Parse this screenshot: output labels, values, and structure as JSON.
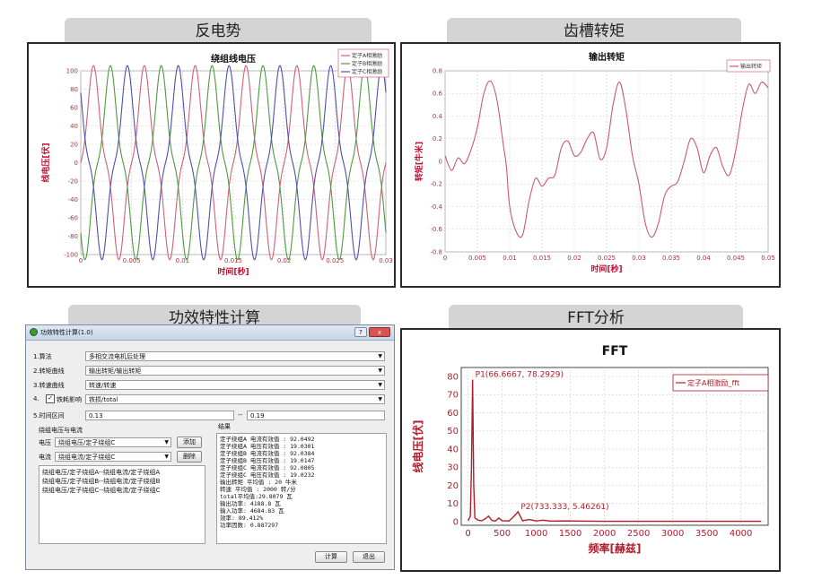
{
  "tabs": {
    "back_emf": "反电势",
    "cogging": "齿槽转矩",
    "efficiency": "功效特性计算",
    "fft": "FFT分析"
  },
  "chart_data": [
    {
      "type": "line",
      "title": "绕组线电压",
      "xlabel": "时间[秒]",
      "ylabel": "线电压[伏]",
      "xlim": [
        0,
        0.03
      ],
      "ylim": [
        -100,
        100
      ],
      "x_ticks": [
        "0",
        "0.005",
        "0.01",
        "0.015",
        "0.02",
        "0.025",
        "0.03"
      ],
      "y_ticks": [
        "100",
        "80",
        "60",
        "40",
        "20",
        "0",
        "-20",
        "-40",
        "-60",
        "-80",
        "-100"
      ],
      "legend_position": "top-right",
      "series": [
        {
          "name": "定子A相激励",
          "color": "#d0607a",
          "phase_deg": 0
        },
        {
          "name": "定子B相激励",
          "color": "#4f9a3f",
          "phase_deg": -120
        },
        {
          "name": "定子C相激励",
          "color": "#4f4fb0",
          "phase_deg": 120
        }
      ],
      "waveform": {
        "frequency_hz": 200,
        "peak": 88,
        "harmonic3_ratio": -0.2
      },
      "grid": true
    },
    {
      "type": "line",
      "title": "输出转矩",
      "xlabel": "时间[秒]",
      "ylabel": "转矩[牛米]",
      "xlim": [
        0,
        0.05
      ],
      "ylim": [
        -0.8,
        0.8
      ],
      "x_ticks": [
        "0",
        "0.005",
        "0.01",
        "0.015",
        "0.02",
        "0.025",
        "0.03",
        "0.035",
        "0.04",
        "0.045",
        "0.05"
      ],
      "y_ticks": [
        "0.8",
        "0.6",
        "0.4",
        "0.2",
        "0",
        "-0.2",
        "-0.4",
        "-0.6",
        "-0.8"
      ],
      "legend_position": "top-right",
      "series": [
        {
          "name": "输出转矩",
          "color": "#cc5a6a",
          "x": [
            0,
            0.001,
            0.002,
            0.003,
            0.004,
            0.005,
            0.006,
            0.007,
            0.008,
            0.009,
            0.0095,
            0.01,
            0.011,
            0.012,
            0.013,
            0.014,
            0.015,
            0.016,
            0.017,
            0.018,
            0.019,
            0.02,
            0.021,
            0.022,
            0.023,
            0.024,
            0.025,
            0.026,
            0.027,
            0.028,
            0.029,
            0.03,
            0.031,
            0.032,
            0.033,
            0.034,
            0.035,
            0.036,
            0.037,
            0.038,
            0.039,
            0.04,
            0.041,
            0.042,
            0.043,
            0.044,
            0.045,
            0.046,
            0.047,
            0.048,
            0.049,
            0.05
          ],
          "y": [
            0.05,
            -0.08,
            0.03,
            -0.02,
            0.1,
            0.3,
            0.6,
            0.71,
            0.55,
            0.15,
            -0.05,
            -0.4,
            -0.62,
            -0.65,
            -0.35,
            -0.15,
            -0.22,
            -0.15,
            -0.12,
            0.12,
            0.18,
            0.05,
            0.08,
            0.2,
            0.25,
            0.02,
            0.12,
            0.5,
            0.7,
            0.45,
            0.05,
            -0.2,
            -0.55,
            -0.67,
            -0.55,
            -0.3,
            -0.22,
            -0.18,
            0.0,
            0.2,
            0.12,
            -0.1,
            0.05,
            0.12,
            -0.05,
            -0.12,
            0.1,
            0.45,
            0.68,
            0.6,
            0.7,
            0.65
          ]
        }
      ],
      "grid": true
    },
    {
      "type": "line",
      "title": "FFT",
      "xlabel": "频率[赫兹]",
      "ylabel": "线电压[伏]",
      "xlim": [
        -100,
        4400
      ],
      "ylim": [
        -2,
        85
      ],
      "x_ticks": [
        "0",
        "500",
        "1000",
        "1500",
        "2000",
        "2500",
        "3000",
        "3500",
        "4000"
      ],
      "y_ticks": [
        "0",
        "10",
        "20",
        "30",
        "40",
        "50",
        "60",
        "70",
        "80"
      ],
      "legend_position": "top-right",
      "series": [
        {
          "name": "定子A相激励_fft",
          "color": "#b01c2a",
          "x": [
            0,
            33.33,
            50,
            66.67,
            83.33,
            100,
            150,
            200,
            250,
            300,
            350,
            400,
            450,
            500,
            600,
            650,
            700,
            733.33,
            766,
            800,
            900,
            1000,
            1100,
            1200,
            1400,
            1600,
            2000,
            2500,
            3000,
            3500,
            4000,
            4300
          ],
          "y": [
            0.5,
            3,
            30,
            78.29,
            20,
            2,
            0.8,
            0.5,
            1.5,
            3,
            0.7,
            0.3,
            2,
            0.5,
            0.4,
            2,
            4,
            5.46,
            3,
            0.5,
            1.2,
            0.4,
            0.8,
            0.3,
            0.4,
            0.3,
            0.2,
            0.2,
            0.2,
            0.2,
            0.2,
            0.2
          ]
        }
      ],
      "annotations": [
        {
          "label": "P1(66.6667, 78.2929)",
          "x": 66.67,
          "y": 78.29
        },
        {
          "label": "P2(733.333, 5.46261)",
          "x": 733.33,
          "y": 5.46
        }
      ],
      "grid": true
    }
  ],
  "dialog": {
    "title": "功效特性计算(1.0)",
    "help": "?",
    "close": "x",
    "rows": [
      {
        "label": "1.算法",
        "value": "多相交流电机后处理"
      },
      {
        "label": "2.转矩曲线",
        "value": "输出转矩/输出转矩"
      },
      {
        "label": "3.转速曲线",
        "value": "转速/转速"
      },
      {
        "label": "4.",
        "checkbox_label": "铁耗影响",
        "value": "铁损/total"
      }
    ],
    "time_label": "5.时间区间",
    "time_from": "0.13",
    "time_sep": "--",
    "time_to": "0.19",
    "group_label": "绕组电压与电流",
    "voltage_label": "电压",
    "voltage_value": "绕组电压/定子绕组C",
    "current_label": "电流",
    "current_value": "绕组电流/定子绕组C",
    "add_button": "添加",
    "delete_button": "删除",
    "pairs": [
      "绕组电压/定子绕组A--绕组电流/定子绕组A",
      "绕组电压/定子绕组B--绕组电流/定子绕组B",
      "绕组电压/定子绕组C--绕组电流/定子绕组C"
    ],
    "result_label": "结果",
    "results": [
      "定子绕组A 电流有效值 : 92.0492",
      "定子绕组A 电压有效值 : 19.0301",
      "定子绕组B 电流有效值 : 92.0384",
      "定子绕组B 电压有效值 : 19.0147",
      "定子绕组C 电流有效值 : 92.0805",
      "定子绕组C 电压有效值 : 19.0232",
      "输出转矩 平均值 : 20 牛米",
      "转速 平均值 : 2000 转/分",
      "total平均值:29.8079 瓦",
      "输出功率: 4188.8 瓦",
      "输入功率: 4684.83 瓦",
      "效率: 89.412%",
      "功率因数: 0.887297"
    ],
    "compute_button": "计算",
    "exit_button": "退出"
  }
}
